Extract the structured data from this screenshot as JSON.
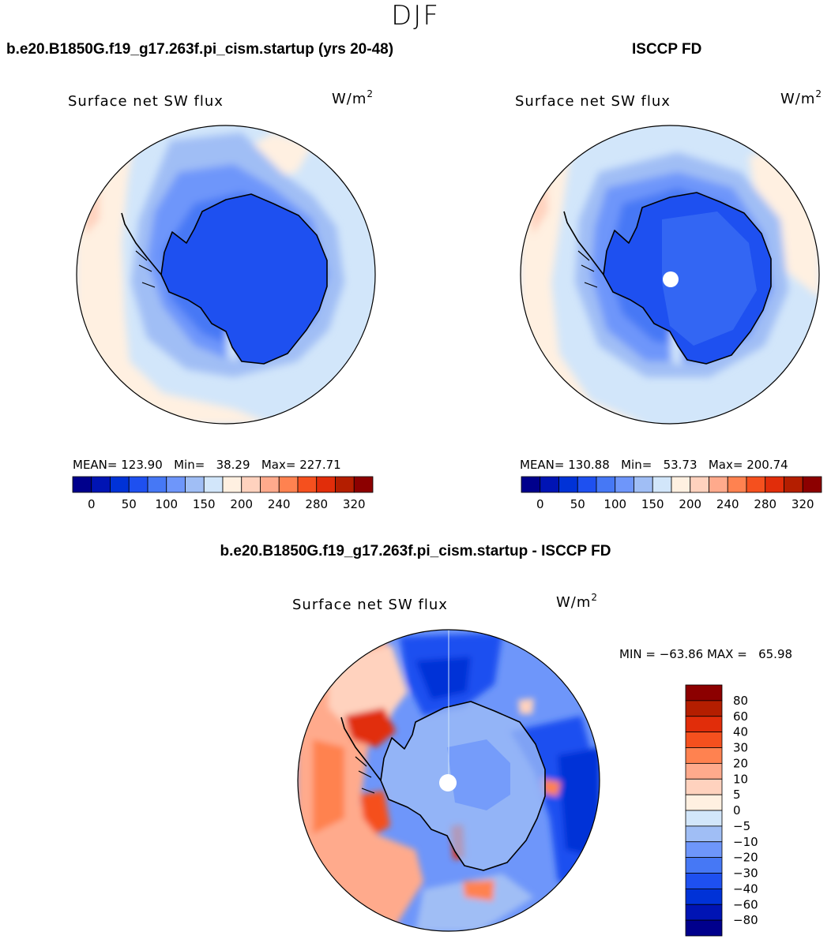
{
  "season": "DJF",
  "units": {
    "prefix": "W/m",
    "sup": "2"
  },
  "chart_data": [
    {
      "type": "heatmap",
      "projection": "south-polar-stereographic",
      "title": "b.e20.B1850G.f19_g17.263f.pi_cism.startup (yrs 20-48)",
      "variable": "Surface net SW flux",
      "units": "W/m2",
      "stats": {
        "mean_label": "MEAN=",
        "mean": "123.90",
        "min_label": "Min=",
        "min": "38.29",
        "max_label": "Max=",
        "max": "227.71"
      },
      "levels": [
        0,
        25,
        50,
        75,
        100,
        125,
        150,
        175,
        200,
        220,
        240,
        260,
        280,
        300,
        320
      ],
      "colorbar_ticks": [
        "0",
        "50",
        "100",
        "150",
        "200",
        "240",
        "280",
        "320"
      ],
      "colors": [
        "#00008c",
        "#0014b4",
        "#0032d7",
        "#1e50f0",
        "#4678f5",
        "#6e96fa",
        "#a0bef5",
        "#d2e6fa",
        "#fff0e1",
        "#ffd2be",
        "#ffaa8c",
        "#ff8250",
        "#f5501e",
        "#e12d0a",
        "#b41e00",
        "#8c0000"
      ],
      "legend_placement": "bottom"
    },
    {
      "type": "heatmap",
      "projection": "south-polar-stereographic",
      "title": "ISCCP FD",
      "variable": "Surface net SW flux",
      "units": "W/m2",
      "stats": {
        "mean_label": "MEAN=",
        "mean": "130.88",
        "min_label": "Min=",
        "min": "53.73",
        "max_label": "Max=",
        "max": "200.74"
      },
      "levels": [
        0,
        25,
        50,
        75,
        100,
        125,
        150,
        175,
        200,
        220,
        240,
        260,
        280,
        300,
        320
      ],
      "colorbar_ticks": [
        "0",
        "50",
        "100",
        "150",
        "200",
        "240",
        "280",
        "320"
      ],
      "colors": [
        "#00008c",
        "#0014b4",
        "#0032d7",
        "#1e50f0",
        "#4678f5",
        "#6e96fa",
        "#a0bef5",
        "#d2e6fa",
        "#fff0e1",
        "#ffd2be",
        "#ffaa8c",
        "#ff8250",
        "#f5501e",
        "#e12d0a",
        "#b41e00",
        "#8c0000"
      ],
      "legend_placement": "bottom"
    },
    {
      "type": "heatmap",
      "projection": "south-polar-stereographic",
      "title": "b.e20.B1850G.f19_g17.263f.pi_cism.startup - ISCCP FD",
      "variable": "Surface net SW flux",
      "units": "W/m2",
      "stats": {
        "text": "MIN = −63.86 MAX =   65.98"
      },
      "colorbar_ticks": [
        "80",
        "60",
        "40",
        "30",
        "20",
        "10",
        "5",
        "0",
        "−5",
        "−10",
        "−20",
        "−30",
        "−40",
        "−60",
        "−80"
      ],
      "colors": [
        "#8c0000",
        "#b41e00",
        "#e12d0a",
        "#f5501e",
        "#ff8250",
        "#ffaa8c",
        "#ffd2be",
        "#fff0e1",
        "#d2e6fa",
        "#a0bef5",
        "#6e96fa",
        "#4678f5",
        "#1e50f0",
        "#0032d7",
        "#0014b4",
        "#00008c"
      ],
      "legend_placement": "right"
    }
  ]
}
